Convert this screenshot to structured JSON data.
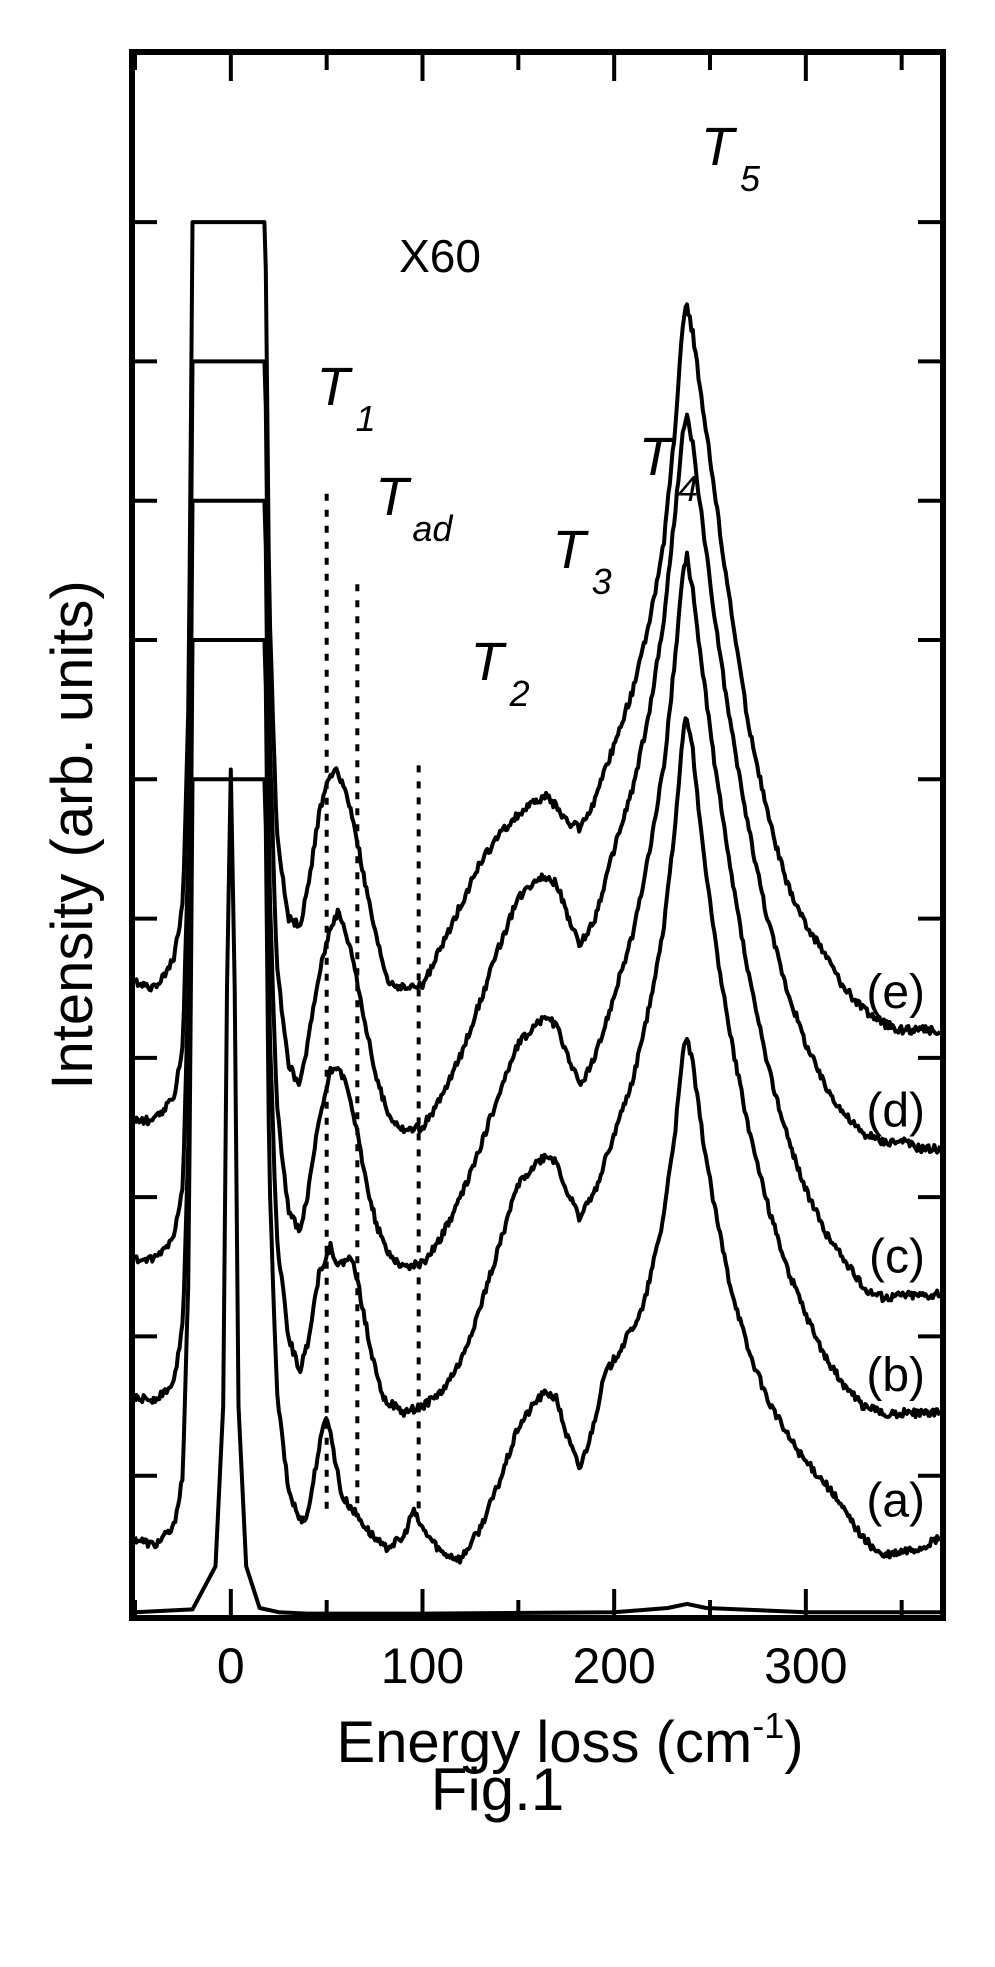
{
  "caption": "Fig.1",
  "chart_data": {
    "type": "line",
    "title": "",
    "xlabel": "Energy loss (cm",
    "xlabel_superscript": "-1",
    "xlabel_suffix": ")",
    "ylabel": "Intensity (arb. units)",
    "xlim": [
      -50,
      370
    ],
    "ylim": [
      0,
      11.2
    ],
    "x_ticks": [
      0,
      100,
      200,
      300
    ],
    "x_minor_ticks": [
      -50,
      50,
      150,
      250,
      350
    ],
    "y_ticks": [
      1,
      2,
      3,
      4,
      5,
      6,
      7,
      8,
      9,
      10
    ],
    "grid": false,
    "legend": "none",
    "magnification_label": "X60",
    "annotations": [
      {
        "main": "T",
        "sub": "1",
        "x": 50
      },
      {
        "main": "T",
        "sub": "ad",
        "x": 66
      },
      {
        "main": "T",
        "sub": "2",
        "x": 98
      },
      {
        "main": "T",
        "sub": "3",
        "x": 170
      },
      {
        "main": "T",
        "sub": "4",
        "x": 215
      },
      {
        "main": "T",
        "sub": "5",
        "x": 238
      }
    ],
    "dotted_lines": [
      {
        "x": 50,
        "y_top": 8.05
      },
      {
        "x": 66,
        "y_top": 7.4
      },
      {
        "x": 98,
        "y_top": 6.1
      }
    ],
    "series": [
      {
        "name": "",
        "peak_only": true,
        "x": [
          -50,
          -20,
          -8,
          -4,
          -2,
          0,
          2,
          4,
          8,
          15,
          25,
          40,
          100,
          200,
          228,
          238,
          248,
          300,
          370
        ],
        "y": [
          0.02,
          0.04,
          0.35,
          1.5,
          4.5,
          6.07,
          4.5,
          1.5,
          0.35,
          0.05,
          0.02,
          0.01,
          0.01,
          0.02,
          0.05,
          0.08,
          0.05,
          0.02,
          0.02
        ]
      },
      {
        "name": "(a)",
        "x": [
          -50,
          -40,
          -30,
          -25,
          -22,
          -20,
          18,
          20,
          24,
          30,
          36,
          40,
          46,
          50,
          54,
          58,
          64,
          72,
          80,
          90,
          95,
          100,
          110,
          120,
          130,
          140,
          150,
          160,
          165,
          170,
          175,
          182,
          188,
          195,
          205,
          215,
          225,
          232,
          236,
          238,
          241,
          246,
          252,
          260,
          270,
          280,
          290,
          300,
          310,
          320,
          330,
          340,
          350,
          360,
          370
        ],
        "y": [
          0.55,
          0.5,
          0.62,
          1.0,
          2.5,
          6.0,
          6.0,
          3.2,
          1.6,
          0.9,
          0.68,
          0.72,
          1.2,
          1.45,
          1.15,
          0.85,
          0.75,
          0.6,
          0.48,
          0.55,
          0.75,
          0.62,
          0.45,
          0.4,
          0.62,
          0.95,
          1.35,
          1.55,
          1.6,
          1.55,
          1.3,
          1.05,
          1.3,
          1.72,
          1.95,
          2.2,
          2.8,
          3.5,
          4.05,
          4.15,
          3.95,
          3.45,
          2.95,
          2.4,
          1.9,
          1.55,
          1.3,
          1.1,
          0.95,
          0.75,
          0.55,
          0.42,
          0.45,
          0.48,
          0.55
        ]
      },
      {
        "name": "(b)",
        "x": [
          -50,
          -40,
          -30,
          -25,
          -22,
          -20,
          18,
          20,
          24,
          30,
          36,
          40,
          46,
          52,
          56,
          60,
          64,
          68,
          74,
          80,
          90,
          100,
          110,
          120,
          130,
          140,
          150,
          160,
          165,
          170,
          175,
          182,
          190,
          200,
          210,
          218,
          226,
          232,
          236,
          238,
          241,
          246,
          252,
          260,
          270,
          280,
          290,
          300,
          310,
          320,
          330,
          340,
          350,
          360,
          370
        ],
        "y": [
          1.55,
          1.55,
          1.65,
          2.1,
          3.5,
          7.0,
          7.0,
          4.3,
          2.7,
          2.0,
          1.75,
          1.95,
          2.45,
          2.65,
          2.5,
          2.55,
          2.55,
          2.25,
          1.85,
          1.55,
          1.45,
          1.5,
          1.6,
          1.82,
          2.2,
          2.65,
          3.1,
          3.25,
          3.3,
          3.25,
          3.05,
          2.85,
          3.05,
          3.45,
          3.85,
          4.35,
          4.95,
          5.7,
          6.35,
          6.45,
          6.2,
          5.55,
          4.9,
          4.2,
          3.5,
          2.95,
          2.5,
          2.15,
          1.85,
          1.65,
          1.5,
          1.45,
          1.45,
          1.45,
          1.45
        ]
      },
      {
        "name": "(c)",
        "x": [
          -50,
          -40,
          -30,
          -25,
          -22,
          -20,
          18,
          20,
          24,
          30,
          36,
          40,
          46,
          52,
          56,
          60,
          64,
          70,
          76,
          82,
          90,
          100,
          110,
          120,
          130,
          140,
          150,
          160,
          165,
          170,
          175,
          182,
          190,
          200,
          210,
          218,
          226,
          232,
          236,
          238,
          241,
          246,
          252,
          260,
          270,
          280,
          290,
          300,
          310,
          320,
          330,
          340,
          350,
          360,
          370
        ],
        "y": [
          2.55,
          2.55,
          2.7,
          3.1,
          4.6,
          8.0,
          8.0,
          5.3,
          3.65,
          2.9,
          2.75,
          3.0,
          3.55,
          3.9,
          3.95,
          3.8,
          3.6,
          3.15,
          2.8,
          2.6,
          2.5,
          2.52,
          2.72,
          3.0,
          3.35,
          3.75,
          4.1,
          4.25,
          4.3,
          4.22,
          4.05,
          3.8,
          4.0,
          4.45,
          4.9,
          5.45,
          6.1,
          6.9,
          7.5,
          7.6,
          7.35,
          6.8,
          6.15,
          5.4,
          4.6,
          3.95,
          3.45,
          3.05,
          2.75,
          2.55,
          2.35,
          2.28,
          2.3,
          2.3,
          2.3
        ]
      },
      {
        "name": "(d)",
        "x": [
          -50,
          -40,
          -30,
          -25,
          -22,
          -20,
          18,
          20,
          24,
          30,
          36,
          40,
          46,
          52,
          56,
          60,
          64,
          70,
          76,
          82,
          90,
          100,
          110,
          120,
          130,
          140,
          150,
          160,
          165,
          170,
          175,
          182,
          190,
          200,
          210,
          218,
          226,
          232,
          236,
          238,
          241,
          246,
          252,
          260,
          270,
          280,
          290,
          300,
          310,
          320,
          330,
          340,
          350,
          360,
          370
        ],
        "y": [
          3.55,
          3.55,
          3.7,
          4.1,
          5.6,
          9.0,
          9.0,
          6.4,
          4.65,
          3.95,
          3.8,
          4.1,
          4.6,
          4.95,
          5.05,
          4.9,
          4.7,
          4.25,
          3.85,
          3.6,
          3.48,
          3.5,
          3.72,
          4.02,
          4.4,
          4.8,
          5.15,
          5.3,
          5.3,
          5.25,
          5.05,
          4.8,
          5.0,
          5.5,
          5.95,
          6.45,
          7.15,
          7.95,
          8.5,
          8.6,
          8.4,
          7.85,
          7.2,
          6.45,
          5.65,
          5.0,
          4.5,
          4.1,
          3.8,
          3.6,
          3.45,
          3.4,
          3.4,
          3.35,
          3.35
        ]
      },
      {
        "name": "(e)",
        "x": [
          -50,
          -40,
          -30,
          -25,
          -22,
          -20,
          18,
          20,
          24,
          30,
          36,
          40,
          46,
          52,
          56,
          60,
          64,
          70,
          76,
          82,
          90,
          100,
          110,
          120,
          130,
          140,
          150,
          160,
          165,
          170,
          175,
          182,
          190,
          200,
          210,
          218,
          226,
          232,
          236,
          238,
          241,
          246,
          252,
          260,
          270,
          280,
          290,
          300,
          310,
          320,
          330,
          340,
          350,
          360,
          370
        ],
        "y": [
          4.55,
          4.5,
          4.7,
          5.1,
          6.6,
          10.0,
          10.0,
          7.3,
          5.6,
          5.0,
          4.95,
          5.2,
          5.75,
          6.05,
          6.05,
          5.9,
          5.7,
          5.25,
          4.85,
          4.55,
          4.5,
          4.52,
          4.8,
          5.1,
          5.4,
          5.6,
          5.75,
          5.85,
          5.88,
          5.8,
          5.7,
          5.65,
          5.85,
          6.25,
          6.65,
          7.1,
          7.7,
          8.55,
          9.3,
          9.4,
          9.2,
          8.7,
          8.1,
          7.3,
          6.4,
          5.75,
          5.25,
          4.95,
          4.75,
          4.5,
          4.35,
          4.25,
          4.2,
          4.2,
          4.2
        ]
      }
    ]
  }
}
